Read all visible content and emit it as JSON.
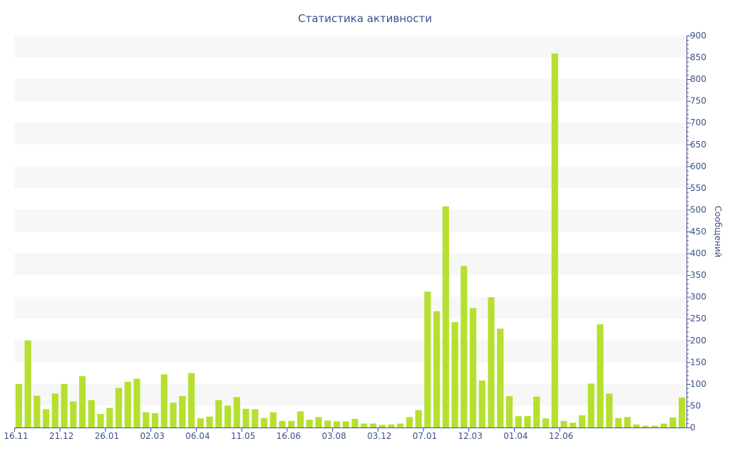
{
  "chart_data": {
    "type": "bar",
    "title": "Статистика активности",
    "xlabel": "",
    "ylabel": "Сообщений",
    "ylim": [
      0,
      900
    ],
    "y_ticks": [
      0,
      50,
      100,
      150,
      200,
      250,
      300,
      350,
      400,
      450,
      500,
      550,
      600,
      650,
      700,
      750,
      800,
      850,
      900
    ],
    "y_axis_position": "right",
    "grid": "alternating horizontal bands",
    "x_tick_labels": [
      {
        "label": "16.11",
        "index": 0
      },
      {
        "label": "21.12",
        "index": 5
      },
      {
        "label": "26.01",
        "index": 10
      },
      {
        "label": "02.03",
        "index": 15
      },
      {
        "label": "06.04",
        "index": 20
      },
      {
        "label": "11.05",
        "index": 25
      },
      {
        "label": "16.06",
        "index": 30
      },
      {
        "label": "03.08",
        "index": 35
      },
      {
        "label": "03.12",
        "index": 40
      },
      {
        "label": "07.01",
        "index": 45
      },
      {
        "label": "12.03",
        "index": 50
      },
      {
        "label": "01.04",
        "index": 55
      },
      {
        "label": "12.06",
        "index": 60
      }
    ],
    "values": [
      100,
      200,
      73,
      42,
      78,
      100,
      60,
      118,
      63,
      31,
      45,
      91,
      105,
      112,
      35,
      33,
      122,
      57,
      72,
      125,
      21,
      25,
      63,
      50,
      70,
      43,
      42,
      22,
      35,
      15,
      15,
      37,
      18,
      24,
      16,
      14,
      14,
      20,
      9,
      9,
      6,
      7,
      9,
      24,
      40,
      312,
      267,
      508,
      242,
      371,
      274,
      108,
      299,
      227,
      72,
      26,
      26,
      71,
      21,
      859,
      15,
      11,
      28,
      101,
      237,
      78,
      22,
      24,
      7,
      4,
      4,
      9,
      23,
      69
    ],
    "color": "#b5e02f",
    "band_color": "#f7f7f7",
    "axis_color": "#3e4f8a"
  }
}
